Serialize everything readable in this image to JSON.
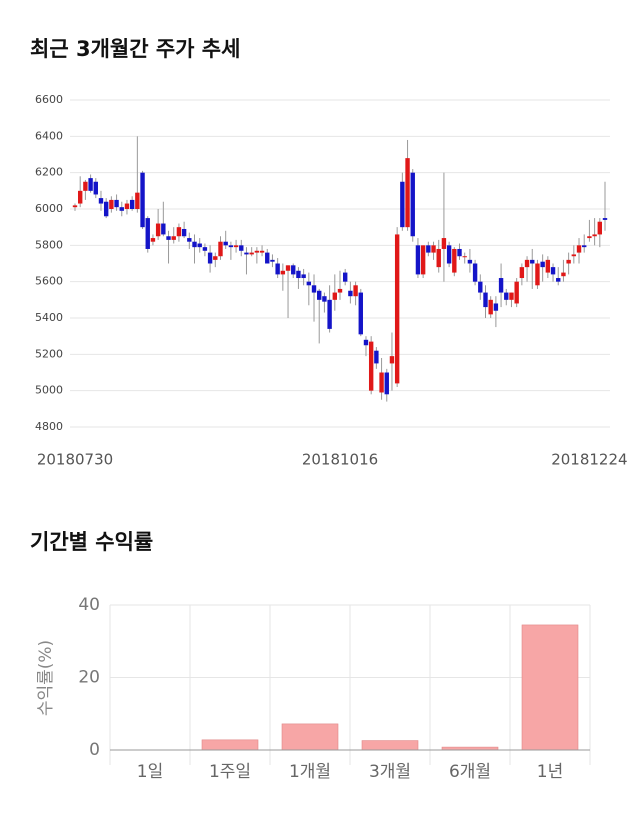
{
  "chart_data": [
    {
      "type": "candlestick",
      "title": "최근 3개월간 주가 추세",
      "up_color": "#e01818",
      "down_color": "#1414c8",
      "grid": true,
      "ylim": [
        4800,
        6600
      ],
      "yticks": [
        4800,
        5000,
        5200,
        5400,
        5600,
        5800,
        6000,
        6200,
        6400,
        6600
      ],
      "categories": [
        "20180730",
        null,
        null,
        null,
        null,
        null,
        null,
        null,
        null,
        null,
        null,
        null,
        null,
        null,
        null,
        null,
        null,
        null,
        null,
        null,
        null,
        null,
        null,
        null,
        null,
        null,
        null,
        null,
        null,
        null,
        null,
        null,
        null,
        null,
        null,
        null,
        null,
        null,
        null,
        null,
        null,
        null,
        null,
        null,
        null,
        null,
        null,
        null,
        null,
        null,
        null,
        "20181016",
        null,
        null,
        null,
        null,
        null,
        null,
        null,
        null,
        null,
        null,
        null,
        null,
        null,
        null,
        null,
        null,
        null,
        null,
        null,
        null,
        null,
        null,
        null,
        null,
        null,
        null,
        null,
        null,
        null,
        null,
        null,
        null,
        null,
        null,
        null,
        null,
        null,
        null,
        null,
        null,
        null,
        null,
        null,
        null,
        null,
        null,
        null,
        "20181224",
        null,
        null,
        null
      ],
      "candles": [
        [
          6010,
          6030,
          5990,
          6020
        ],
        [
          6030,
          6180,
          6010,
          6100
        ],
        [
          6100,
          6160,
          6050,
          6150
        ],
        [
          6170,
          6190,
          6090,
          6100
        ],
        [
          6150,
          6170,
          6060,
          6080
        ],
        [
          6060,
          6100,
          5990,
          6030
        ],
        [
          6040,
          6060,
          5950,
          5960
        ],
        [
          6000,
          6070,
          5980,
          6050
        ],
        [
          6050,
          6080,
          5990,
          6010
        ],
        [
          6010,
          6040,
          5960,
          5990
        ],
        [
          6000,
          6050,
          5970,
          6030
        ],
        [
          6050,
          6070,
          5990,
          6000
        ],
        [
          6000,
          6400,
          5980,
          6090
        ],
        [
          6200,
          6210,
          5890,
          5900
        ],
        [
          5950,
          5960,
          5760,
          5780
        ],
        [
          5820,
          5860,
          5800,
          5840
        ],
        [
          5850,
          6000,
          5830,
          5920
        ],
        [
          5920,
          6040,
          5850,
          5860
        ],
        [
          5850,
          5880,
          5700,
          5830
        ],
        [
          5830,
          5900,
          5810,
          5850
        ],
        [
          5850,
          5920,
          5820,
          5900
        ],
        [
          5890,
          5930,
          5840,
          5850
        ],
        [
          5840,
          5870,
          5780,
          5820
        ],
        [
          5820,
          5860,
          5700,
          5790
        ],
        [
          5810,
          5840,
          5760,
          5790
        ],
        [
          5790,
          5810,
          5740,
          5770
        ],
        [
          5760,
          5800,
          5650,
          5700
        ],
        [
          5720,
          5760,
          5680,
          5740
        ],
        [
          5740,
          5850,
          5720,
          5820
        ],
        [
          5820,
          5880,
          5780,
          5800
        ],
        [
          5800,
          5820,
          5720,
          5790
        ],
        [
          5790,
          5830,
          5760,
          5800
        ],
        [
          5800,
          5830,
          5740,
          5770
        ],
        [
          5760,
          5790,
          5640,
          5750
        ],
        [
          5750,
          5790,
          5740,
          5760
        ],
        [
          5760,
          5790,
          5700,
          5770
        ],
        [
          5760,
          5800,
          5740,
          5770
        ],
        [
          5760,
          5780,
          5700,
          5700
        ],
        [
          5720,
          5750,
          5680,
          5710
        ],
        [
          5700,
          5730,
          5620,
          5640
        ],
        [
          5640,
          5700,
          5550,
          5660
        ],
        [
          5660,
          5690,
          5400,
          5690
        ],
        [
          5690,
          5700,
          5620,
          5640
        ],
        [
          5660,
          5680,
          5560,
          5620
        ],
        [
          5640,
          5670,
          5580,
          5620
        ],
        [
          5600,
          5650,
          5470,
          5580
        ],
        [
          5580,
          5640,
          5380,
          5540
        ],
        [
          5550,
          5560,
          5260,
          5500
        ],
        [
          5520,
          5540,
          5430,
          5490
        ],
        [
          5500,
          5580,
          5320,
          5340
        ],
        [
          5500,
          5640,
          5440,
          5540
        ],
        [
          5540,
          5660,
          5500,
          5560
        ],
        [
          5650,
          5670,
          5580,
          5600
        ],
        [
          5550,
          5600,
          5480,
          5520
        ],
        [
          5520,
          5600,
          5470,
          5580
        ],
        [
          5540,
          5560,
          5300,
          5310
        ],
        [
          5280,
          5300,
          5190,
          5250
        ],
        [
          5000,
          5300,
          4980,
          5270
        ],
        [
          5220,
          5240,
          5120,
          5150
        ],
        [
          4990,
          5180,
          4950,
          5100
        ],
        [
          5100,
          5120,
          4940,
          4980
        ],
        [
          5150,
          5320,
          5000,
          5190
        ],
        [
          5040,
          5900,
          5020,
          5860
        ],
        [
          6150,
          6200,
          5880,
          5900
        ],
        [
          5900,
          6380,
          5880,
          6280
        ],
        [
          6200,
          6220,
          5820,
          5850
        ],
        [
          5800,
          5840,
          5620,
          5640
        ],
        [
          5640,
          5800,
          5620,
          5800
        ],
        [
          5800,
          5820,
          5740,
          5760
        ],
        [
          5760,
          5820,
          5720,
          5800
        ],
        [
          5680,
          5830,
          5650,
          5780
        ],
        [
          5780,
          6200,
          5600,
          5840
        ],
        [
          5800,
          5820,
          5680,
          5700
        ],
        [
          5650,
          5790,
          5630,
          5780
        ],
        [
          5780,
          5810,
          5720,
          5740
        ],
        [
          5740,
          5760,
          5700,
          5740
        ],
        [
          5720,
          5780,
          5650,
          5700
        ],
        [
          5700,
          5720,
          5580,
          5600
        ],
        [
          5600,
          5640,
          5500,
          5540
        ],
        [
          5540,
          5580,
          5400,
          5460
        ],
        [
          5420,
          5520,
          5400,
          5500
        ],
        [
          5480,
          5520,
          5350,
          5440
        ],
        [
          5620,
          5700,
          5460,
          5540
        ],
        [
          5540,
          5560,
          5470,
          5500
        ],
        [
          5500,
          5540,
          5460,
          5540
        ],
        [
          5480,
          5620,
          5460,
          5600
        ],
        [
          5620,
          5700,
          5580,
          5680
        ],
        [
          5680,
          5740,
          5600,
          5720
        ],
        [
          5720,
          5780,
          5560,
          5700
        ],
        [
          5580,
          5720,
          5560,
          5700
        ],
        [
          5710,
          5750,
          5600,
          5680
        ],
        [
          5650,
          5740,
          5620,
          5720
        ],
        [
          5680,
          5700,
          5600,
          5640
        ],
        [
          5620,
          5680,
          5580,
          5600
        ],
        [
          5630,
          5720,
          5600,
          5650
        ],
        [
          5700,
          5760,
          5640,
          5720
        ],
        [
          5740,
          5800,
          5700,
          5750
        ],
        [
          5760,
          5840,
          5700,
          5800
        ],
        [
          5800,
          5860,
          5760,
          5790
        ],
        [
          5840,
          5940,
          5820,
          5850
        ],
        [
          5850,
          5950,
          5800,
          5860
        ],
        [
          5860,
          5950,
          5790,
          5930
        ],
        [
          5950,
          6150,
          5880,
          5940
        ]
      ]
    },
    {
      "type": "bar",
      "title": "기간별 수익률",
      "ylabel": "수익률(%)",
      "color": "#f7a6a6",
      "grid": true,
      "categories": [
        "1일",
        "1주일",
        "1개월",
        "3개월",
        "6개월",
        "1년"
      ],
      "values": [
        0,
        2.8,
        7.2,
        2.6,
        0.8,
        34.5
      ],
      "ylim": [
        0,
        40
      ],
      "yticks": [
        0,
        20,
        40
      ]
    }
  ]
}
